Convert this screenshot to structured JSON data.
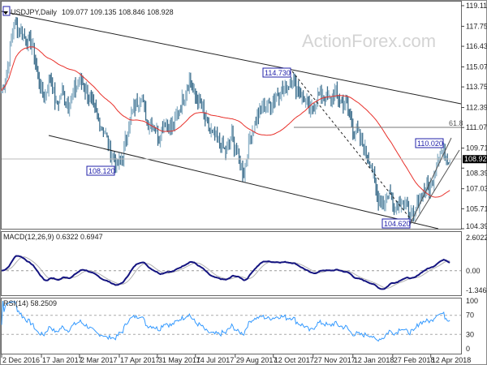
{
  "header": {
    "symbol_label": "USDJPY,Daily",
    "ohlc": "109.077 109.135 108.846 108.928"
  },
  "watermark": "ActionForex.com",
  "chart_data": [
    {
      "type": "bar",
      "name": "price",
      "symbol": "USDJPY",
      "timeframe": "Daily",
      "ylim": [
        104.39,
        119.11
      ],
      "y_ticks": [
        "119.110",
        "117.750",
        "116.430",
        "115.070",
        "113.750",
        "112.390",
        "111.070",
        "109.710",
        "108.390",
        "107.030",
        "105.710",
        "104.390"
      ],
      "current_price": "108.928",
      "x": [
        "2016-12-02",
        "2016-12-09",
        "2016-12-16",
        "2016-12-23",
        "2016-12-30",
        "2017-01-06",
        "2017-01-13",
        "2017-01-20",
        "2017-01-27",
        "2017-02-03",
        "2017-02-10",
        "2017-02-17",
        "2017-02-24",
        "2017-03-03",
        "2017-03-10",
        "2017-03-17",
        "2017-03-24",
        "2017-03-31",
        "2017-04-07",
        "2017-04-14",
        "2017-04-21",
        "2017-04-28",
        "2017-05-05",
        "2017-05-12",
        "2017-05-19",
        "2017-05-26",
        "2017-06-02",
        "2017-06-09",
        "2017-06-16",
        "2017-06-23",
        "2017-06-30",
        "2017-07-07",
        "2017-07-14",
        "2017-07-21",
        "2017-07-28",
        "2017-08-04",
        "2017-08-11",
        "2017-08-18",
        "2017-08-25",
        "2017-09-01",
        "2017-09-08",
        "2017-09-15",
        "2017-09-22",
        "2017-09-29",
        "2017-10-06",
        "2017-10-13",
        "2017-10-20",
        "2017-10-27",
        "2017-11-03",
        "2017-11-10",
        "2017-11-17",
        "2017-11-24",
        "2017-12-01",
        "2017-12-08",
        "2017-12-15",
        "2017-12-22",
        "2017-12-29",
        "2018-01-05",
        "2018-01-12",
        "2018-01-19",
        "2018-01-26",
        "2018-02-02",
        "2018-02-09",
        "2018-02-16",
        "2018-02-23",
        "2018-03-02",
        "2018-03-09",
        "2018-03-16",
        "2018-03-23",
        "2018-03-30",
        "2018-04-06",
        "2018-04-13",
        "2018-04-20",
        "2018-04-27",
        "2018-05-04"
      ],
      "close": [
        113.5,
        115,
        118,
        117.5,
        117,
        116.5,
        114.5,
        113,
        114.5,
        112.5,
        113.5,
        112.5,
        113.5,
        114.2,
        113.5,
        112.5,
        111.5,
        110.8,
        109.5,
        108.5,
        109.2,
        111.3,
        112.5,
        113.2,
        111.5,
        111.3,
        110.5,
        111.5,
        111.0,
        112.0,
        113.0,
        114.2,
        113.0,
        112.5,
        111.0,
        110.5,
        110.0,
        109.5,
        110.5,
        109.2,
        108.0,
        110.5,
        111.5,
        112.5,
        112.5,
        113.0,
        113.5,
        113.8,
        114.2,
        113.5,
        113.0,
        112.0,
        113.0,
        113.3,
        112.8,
        113.3,
        112.8,
        112.5,
        111.0,
        110.5,
        109.5,
        108.7,
        106.5,
        106.0,
        106.8,
        105.8,
        106.4,
        105.5,
        105.0,
        106.5,
        107.0,
        107.3,
        109.3,
        109.5,
        108.928
      ],
      "overlay": "moving average (red)",
      "annotations": [
        {
          "text": "114.730",
          "date": "2017-11-06",
          "price": 114.73
        },
        {
          "text": "108.120",
          "date": "2017-04-17",
          "price": 108.12
        },
        {
          "text": "110.020",
          "date": "2018-05-02",
          "price": 110.02
        },
        {
          "text": "104.620",
          "date": "2018-03-26",
          "price": 104.62
        },
        {
          "text": "61.8",
          "price": 111.07
        }
      ],
      "x_ticks": [
        "2 Dec 2016",
        "17 Jan 2017",
        "2 Mar 2017",
        "17 Apr 2017",
        "31 May 2017",
        "14 Jul 2017",
        "29 Aug 2017",
        "12 Oct 2017",
        "27 Nov 2017",
        "12 Jan 2018",
        "27 Feb 2018",
        "12 Apr 2018"
      ]
    },
    {
      "type": "line",
      "name": "MACD",
      "label": "MACD(12,26,9) 0.6322 0.6947",
      "ylim": [
        -1.346,
        2.6022
      ],
      "y_ticks": [
        "2.6022",
        "0.00",
        "-1.346"
      ]
    },
    {
      "type": "line",
      "name": "RSI",
      "label": "RSI(14) 58.2509",
      "ylim": [
        0,
        100
      ],
      "y_ticks": [
        "100",
        "70",
        "30",
        "0"
      ]
    }
  ],
  "colors": {
    "bars": "#3d6e8c",
    "ma": "#e8302a",
    "macd": "#141480",
    "signal": "#b0b0b0",
    "rsi": "#3399ff",
    "annotation": "#2222aa"
  }
}
